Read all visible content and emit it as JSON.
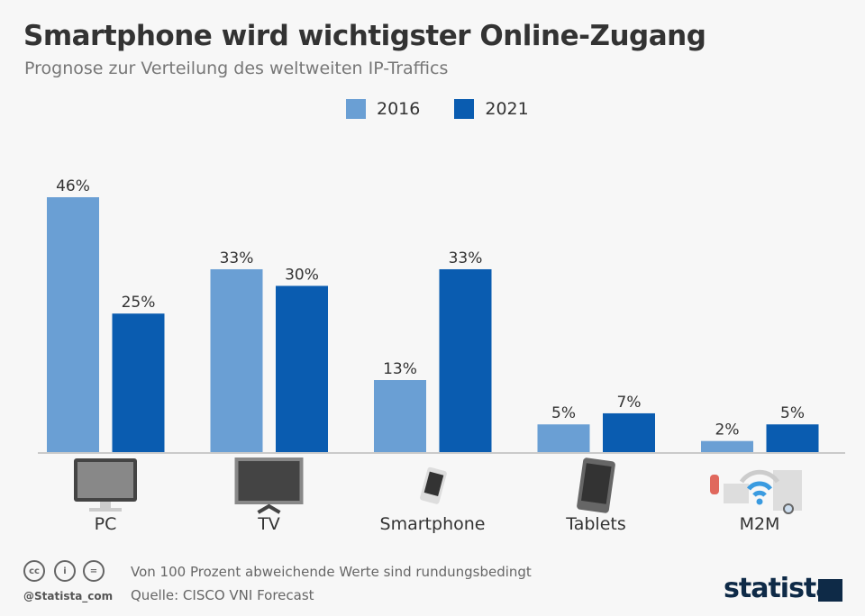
{
  "title": "Smartphone wird wichtigster Online-Zugang",
  "subtitle": "Prognose zur Verteilung des weltweiten IP-Traffics",
  "chart_data": {
    "type": "bar",
    "categories": [
      "PC",
      "TV",
      "Smartphone",
      "Tablets",
      "M2M"
    ],
    "series": [
      {
        "name": "2016",
        "color": "#6a9fd4",
        "values": [
          46,
          33,
          13,
          5,
          2
        ]
      },
      {
        "name": "2021",
        "color": "#0a5cb0",
        "values": [
          25,
          30,
          33,
          7,
          5
        ]
      }
    ],
    "value_suffix": "%",
    "ylim": [
      0,
      46
    ],
    "legend": "top-center",
    "category_icons": [
      "monitor-icon",
      "tv-icon",
      "smartphone-icon",
      "tablet-icon",
      "m2m-devices-icon"
    ]
  },
  "footer": {
    "note": "Von 100 Prozent abweichende Werte sind rundungsbedingt",
    "source": "Quelle: CISCO VNI Forecast",
    "handle": "@Statista_com",
    "logo": "statista"
  }
}
